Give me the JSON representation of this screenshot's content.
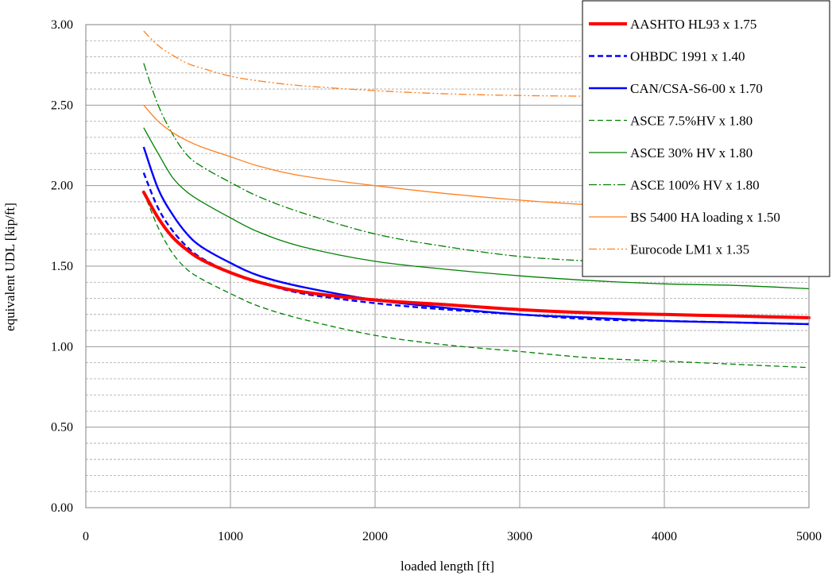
{
  "chart_data": {
    "type": "line",
    "title": "",
    "xlabel": "loaded length [ft]",
    "ylabel": "equivalent UDL [kip/ft]",
    "xlim": [
      0,
      5000
    ],
    "ylim": [
      0,
      3.0
    ],
    "x_ticks": [
      0,
      1000,
      2000,
      3000,
      4000,
      5000
    ],
    "x_tick_labels": [
      "0",
      "1000",
      "2000",
      "3000",
      "4000",
      "5000"
    ],
    "y_ticks": [
      0,
      0.5,
      1.0,
      1.5,
      2.0,
      2.5,
      3.0
    ],
    "y_tick_labels": [
      "0.00",
      "0.50",
      "1.00",
      "1.50",
      "2.00",
      "2.50",
      "3.00"
    ],
    "y_minor_step": 0.1,
    "grid": true,
    "legend_position": "top-right",
    "series": [
      {
        "name": "AASHTO HL93 x 1.75",
        "color": "#ff0000",
        "dash": "solid",
        "weight": "heavy",
        "x": [
          400,
          500,
          600,
          700,
          800,
          1000,
          1200,
          1500,
          2000,
          2500,
          3000,
          3500,
          4000,
          4500,
          5000
        ],
        "y": [
          1.96,
          1.8,
          1.68,
          1.6,
          1.54,
          1.46,
          1.4,
          1.34,
          1.29,
          1.26,
          1.23,
          1.21,
          1.2,
          1.19,
          1.18
        ]
      },
      {
        "name": "OHBDC 1991 x 1.40",
        "color": "#0000ff",
        "dash": "dashed",
        "weight": "medium",
        "x": [
          400,
          500,
          600,
          700,
          800,
          1000,
          1200,
          1500,
          2000,
          2500,
          3000,
          3500,
          4000,
          4500,
          5000
        ],
        "y": [
          2.08,
          1.86,
          1.72,
          1.62,
          1.55,
          1.46,
          1.4,
          1.33,
          1.27,
          1.23,
          1.2,
          1.17,
          1.16,
          1.15,
          1.14
        ]
      },
      {
        "name": "CAN/CSA-S6-00 x 1.70",
        "color": "#0000ff",
        "dash": "solid",
        "weight": "medium",
        "x": [
          400,
          500,
          600,
          700,
          800,
          1000,
          1200,
          1500,
          2000,
          2500,
          3000,
          3500,
          4000,
          4500,
          5000
        ],
        "y": [
          2.24,
          1.98,
          1.82,
          1.7,
          1.62,
          1.52,
          1.44,
          1.37,
          1.29,
          1.24,
          1.2,
          1.18,
          1.16,
          1.15,
          1.14
        ]
      },
      {
        "name": "ASCE 7.5%HV x 1.80",
        "color": "#008000",
        "dash": "dashed",
        "weight": "thin",
        "x": [
          400,
          500,
          600,
          700,
          800,
          1000,
          1200,
          1500,
          2000,
          2500,
          3000,
          3500,
          4000,
          4500,
          5000
        ],
        "y": [
          1.96,
          1.74,
          1.58,
          1.48,
          1.42,
          1.33,
          1.25,
          1.17,
          1.07,
          1.01,
          0.97,
          0.93,
          0.91,
          0.89,
          0.87
        ]
      },
      {
        "name": "ASCE 30% HV x 1.80",
        "color": "#008000",
        "dash": "solid",
        "weight": "thin",
        "x": [
          400,
          500,
          600,
          700,
          800,
          1000,
          1200,
          1500,
          2000,
          2500,
          3000,
          3500,
          4000,
          4500,
          5000
        ],
        "y": [
          2.36,
          2.2,
          2.05,
          1.96,
          1.9,
          1.8,
          1.71,
          1.62,
          1.53,
          1.48,
          1.44,
          1.41,
          1.39,
          1.38,
          1.36
        ]
      },
      {
        "name": "ASCE 100% HV x 1.80",
        "color": "#008000",
        "dash": "dashdot",
        "weight": "thin",
        "x": [
          400,
          500,
          600,
          700,
          800,
          1000,
          1200,
          1500,
          2000,
          2500,
          3000,
          3500,
          4000,
          4500,
          5000
        ],
        "y": [
          2.76,
          2.5,
          2.32,
          2.19,
          2.12,
          2.02,
          1.93,
          1.83,
          1.7,
          1.62,
          1.56,
          1.53,
          1.5,
          1.48,
          1.46
        ]
      },
      {
        "name": "BS 5400 HA loading x 1.50",
        "color": "#ff8020",
        "dash": "solid",
        "weight": "thin",
        "x": [
          400,
          500,
          600,
          700,
          800,
          1000,
          1200,
          1500,
          2000,
          2500,
          3000,
          3500,
          4000,
          4500,
          5000
        ],
        "y": [
          2.5,
          2.4,
          2.33,
          2.28,
          2.24,
          2.18,
          2.12,
          2.06,
          2.0,
          1.95,
          1.91,
          1.88,
          1.86,
          1.84,
          1.83
        ]
      },
      {
        "name": "Eurocode LM1 x 1.35",
        "color": "#ff8020",
        "dash": "dashdotdot",
        "weight": "thin",
        "x": [
          400,
          500,
          600,
          700,
          800,
          1000,
          1200,
          1500,
          2000,
          2500,
          3000,
          3500,
          4000,
          4500,
          5000
        ],
        "y": [
          2.96,
          2.87,
          2.81,
          2.76,
          2.73,
          2.68,
          2.65,
          2.62,
          2.59,
          2.57,
          2.56,
          2.555,
          2.55,
          2.55,
          2.55
        ]
      }
    ]
  }
}
